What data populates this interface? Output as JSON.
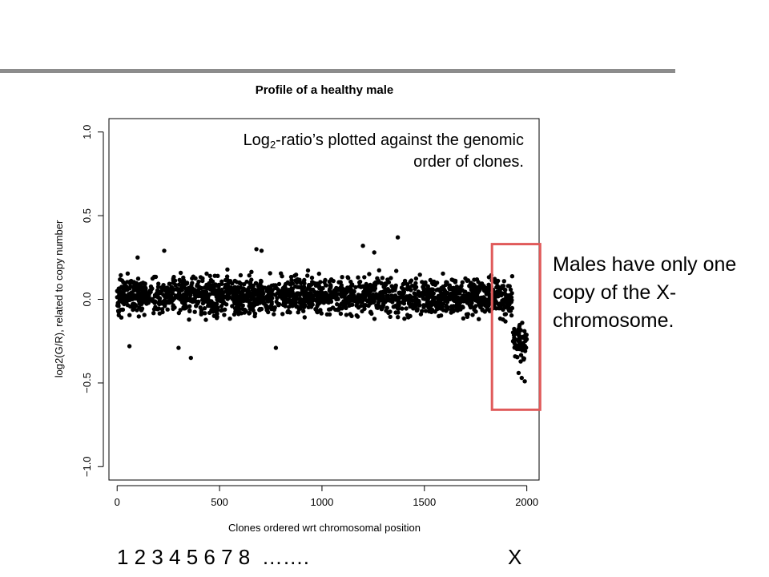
{
  "annotation": {
    "prefix": "Log",
    "subscript": "2",
    "suffix": "-ratio’s plotted against the genomic order of clones."
  },
  "callout": {
    "text": "Males have only one copy of the X-chromosome.",
    "box_color": "#e05a5a"
  },
  "chromosome_labels": {
    "left": "1 2 3 4 5 6 7 8  …….",
    "right": "X"
  },
  "chart_data": {
    "type": "scatter",
    "title": "Profile of a healthy male",
    "xlabel": "Clones ordered wrt chromosomal position",
    "ylabel": "log2(G/R), related to copy number",
    "xlim": [
      -40,
      2060
    ],
    "ylim": [
      -1.08,
      1.08
    ],
    "x_ticks": [
      0,
      500,
      1000,
      1500,
      2000
    ],
    "x_tick_labels": [
      "0",
      "500",
      "1000",
      "1500",
      "2000"
    ],
    "y_ticks": [
      -1.0,
      -0.5,
      0.0,
      0.5,
      1.0
    ],
    "y_tick_labels": [
      "−1.0",
      "−0.5",
      "0.0",
      "0.5",
      "1.0"
    ],
    "grid": false,
    "legend": "none",
    "highlight_region": {
      "x": [
        1830,
        2065
      ],
      "y": [
        -0.66,
        0.33
      ]
    },
    "series": [
      {
        "color": "#000000",
        "n_points": 2000,
        "segments": [
          {
            "x_range": [
              0,
              1870
            ],
            "mean": 0.02,
            "spread": 0.09
          },
          {
            "x_range": [
              1870,
              1930
            ],
            "mean": 0.0,
            "spread": 0.1
          },
          {
            "x_range": [
              1930,
              2000
            ],
            "mean": -0.25,
            "spread": 0.09
          }
        ],
        "x": [
          60,
          100,
          230,
          300,
          360,
          680,
          705,
          775,
          1200,
          1255,
          1370,
          1960,
          1975,
          1985,
          1990
        ],
        "y": [
          -0.28,
          0.25,
          0.29,
          -0.29,
          -0.35,
          0.3,
          0.29,
          -0.29,
          0.32,
          0.28,
          0.37,
          -0.44,
          -0.47,
          -0.36,
          -0.49
        ]
      }
    ]
  }
}
